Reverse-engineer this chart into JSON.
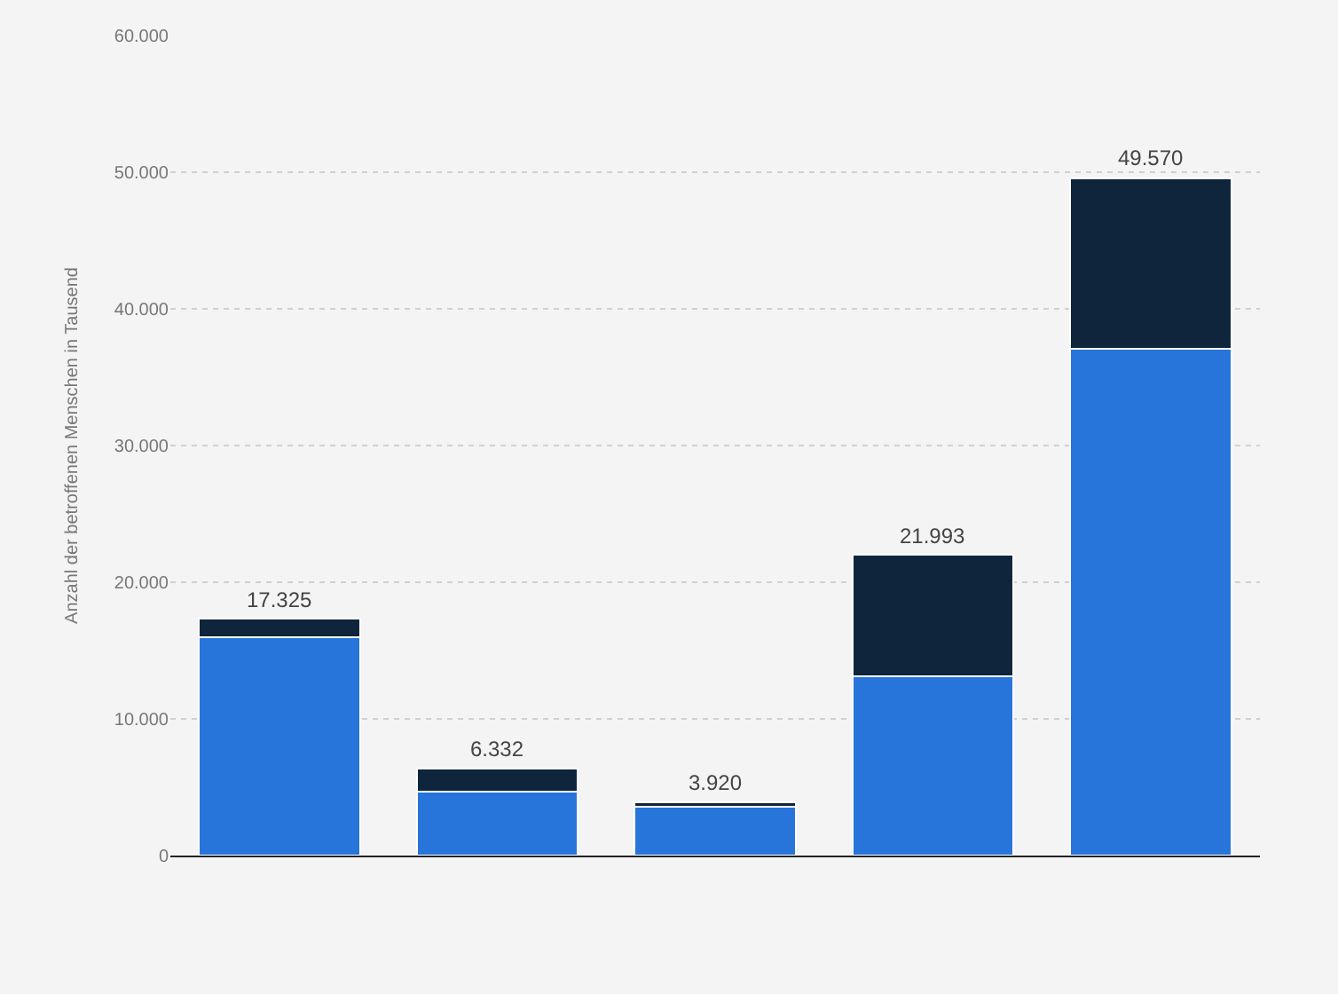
{
  "chart_data": {
    "type": "bar",
    "stacked": true,
    "ylabel": "Anzahl der betroffenen Menschen in Tausend",
    "categories": [
      null,
      null,
      null,
      null,
      null
    ],
    "series": [
      {
        "color": "#2775db",
        "values": [
          16000,
          4700,
          3600,
          13100,
          37100
        ]
      },
      {
        "color": "#0f253c",
        "values": [
          1325,
          1632,
          320,
          8893,
          12470
        ]
      }
    ],
    "totals": [
      "17.325",
      "6.332",
      "3.920",
      "21.993",
      "49.570"
    ],
    "ylim": [
      0,
      60000
    ],
    "yticks": [
      {
        "value": 0,
        "label": "0"
      },
      {
        "value": 10000,
        "label": "10.000"
      },
      {
        "value": 20000,
        "label": "20.000"
      },
      {
        "value": 30000,
        "label": "30.000"
      },
      {
        "value": 40000,
        "label": "40.000"
      },
      {
        "value": 50000,
        "label": "50.000"
      },
      {
        "value": 60000,
        "label": "60.000"
      }
    ],
    "grid": "y"
  }
}
